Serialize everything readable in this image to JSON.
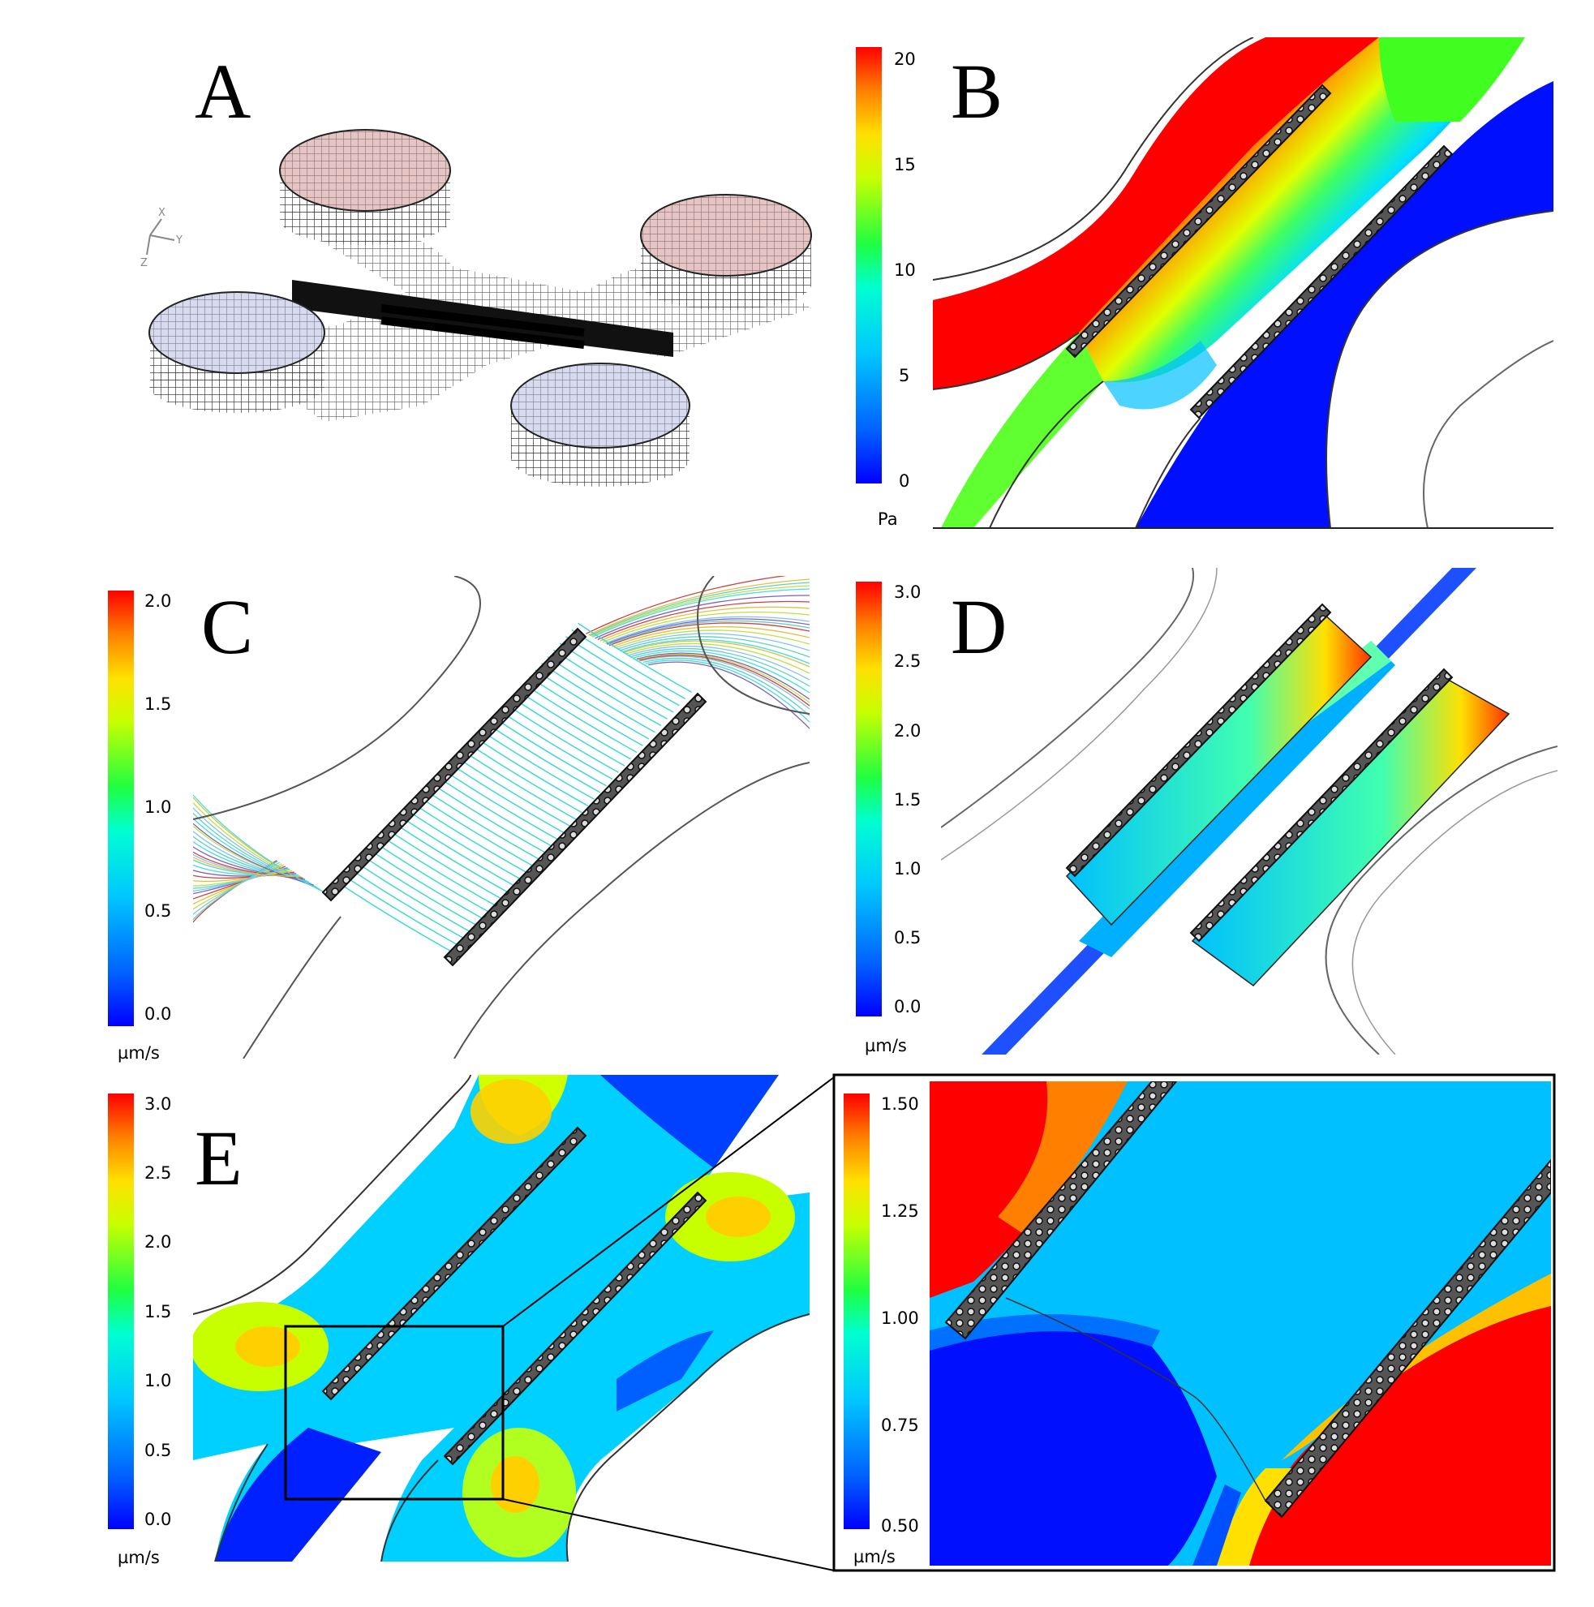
{
  "panels": {
    "A": {
      "label": "A"
    },
    "B": {
      "label": "B",
      "colorbar": {
        "ticks": [
          "20",
          "15",
          "10",
          "5",
          "0"
        ],
        "unit": "Pa"
      }
    },
    "C": {
      "label": "C",
      "colorbar": {
        "ticks": [
          "2.0",
          "1.5",
          "1.0",
          "0.5",
          "0.0"
        ],
        "unit": "µm/s"
      }
    },
    "D": {
      "label": "D",
      "colorbar": {
        "ticks": [
          "3.0",
          "2.5",
          "2.0",
          "1.5",
          "1.0",
          "0.5",
          "0.0"
        ],
        "unit": "µm/s"
      }
    },
    "E": {
      "label": "E",
      "colorbar": {
        "ticks": [
          "3.0",
          "2.5",
          "2.0",
          "1.5",
          "1.0",
          "0.5",
          "0.0"
        ],
        "unit": "µm/s"
      }
    },
    "E_zoom": {
      "colorbar": {
        "ticks": [
          "1.50",
          "1.25",
          "1.00",
          "0.75",
          "0.50"
        ],
        "unit": "µm/s"
      }
    }
  },
  "axis_triad": {
    "x": "X",
    "y": "Y",
    "z": "Z"
  },
  "colors": {
    "jet": [
      "#0000ff",
      "#0040ff",
      "#0080ff",
      "#00bfff",
      "#00ffff",
      "#20ffbf",
      "#40ff80",
      "#80ff40",
      "#bfff00",
      "#ffff00",
      "#ffbf00",
      "#ff8000",
      "#ff4000",
      "#ff0000"
    ],
    "mesh": "#222222",
    "inlet_top": "#c87a7a",
    "inlet_bottom": "#8a8fc0"
  }
}
